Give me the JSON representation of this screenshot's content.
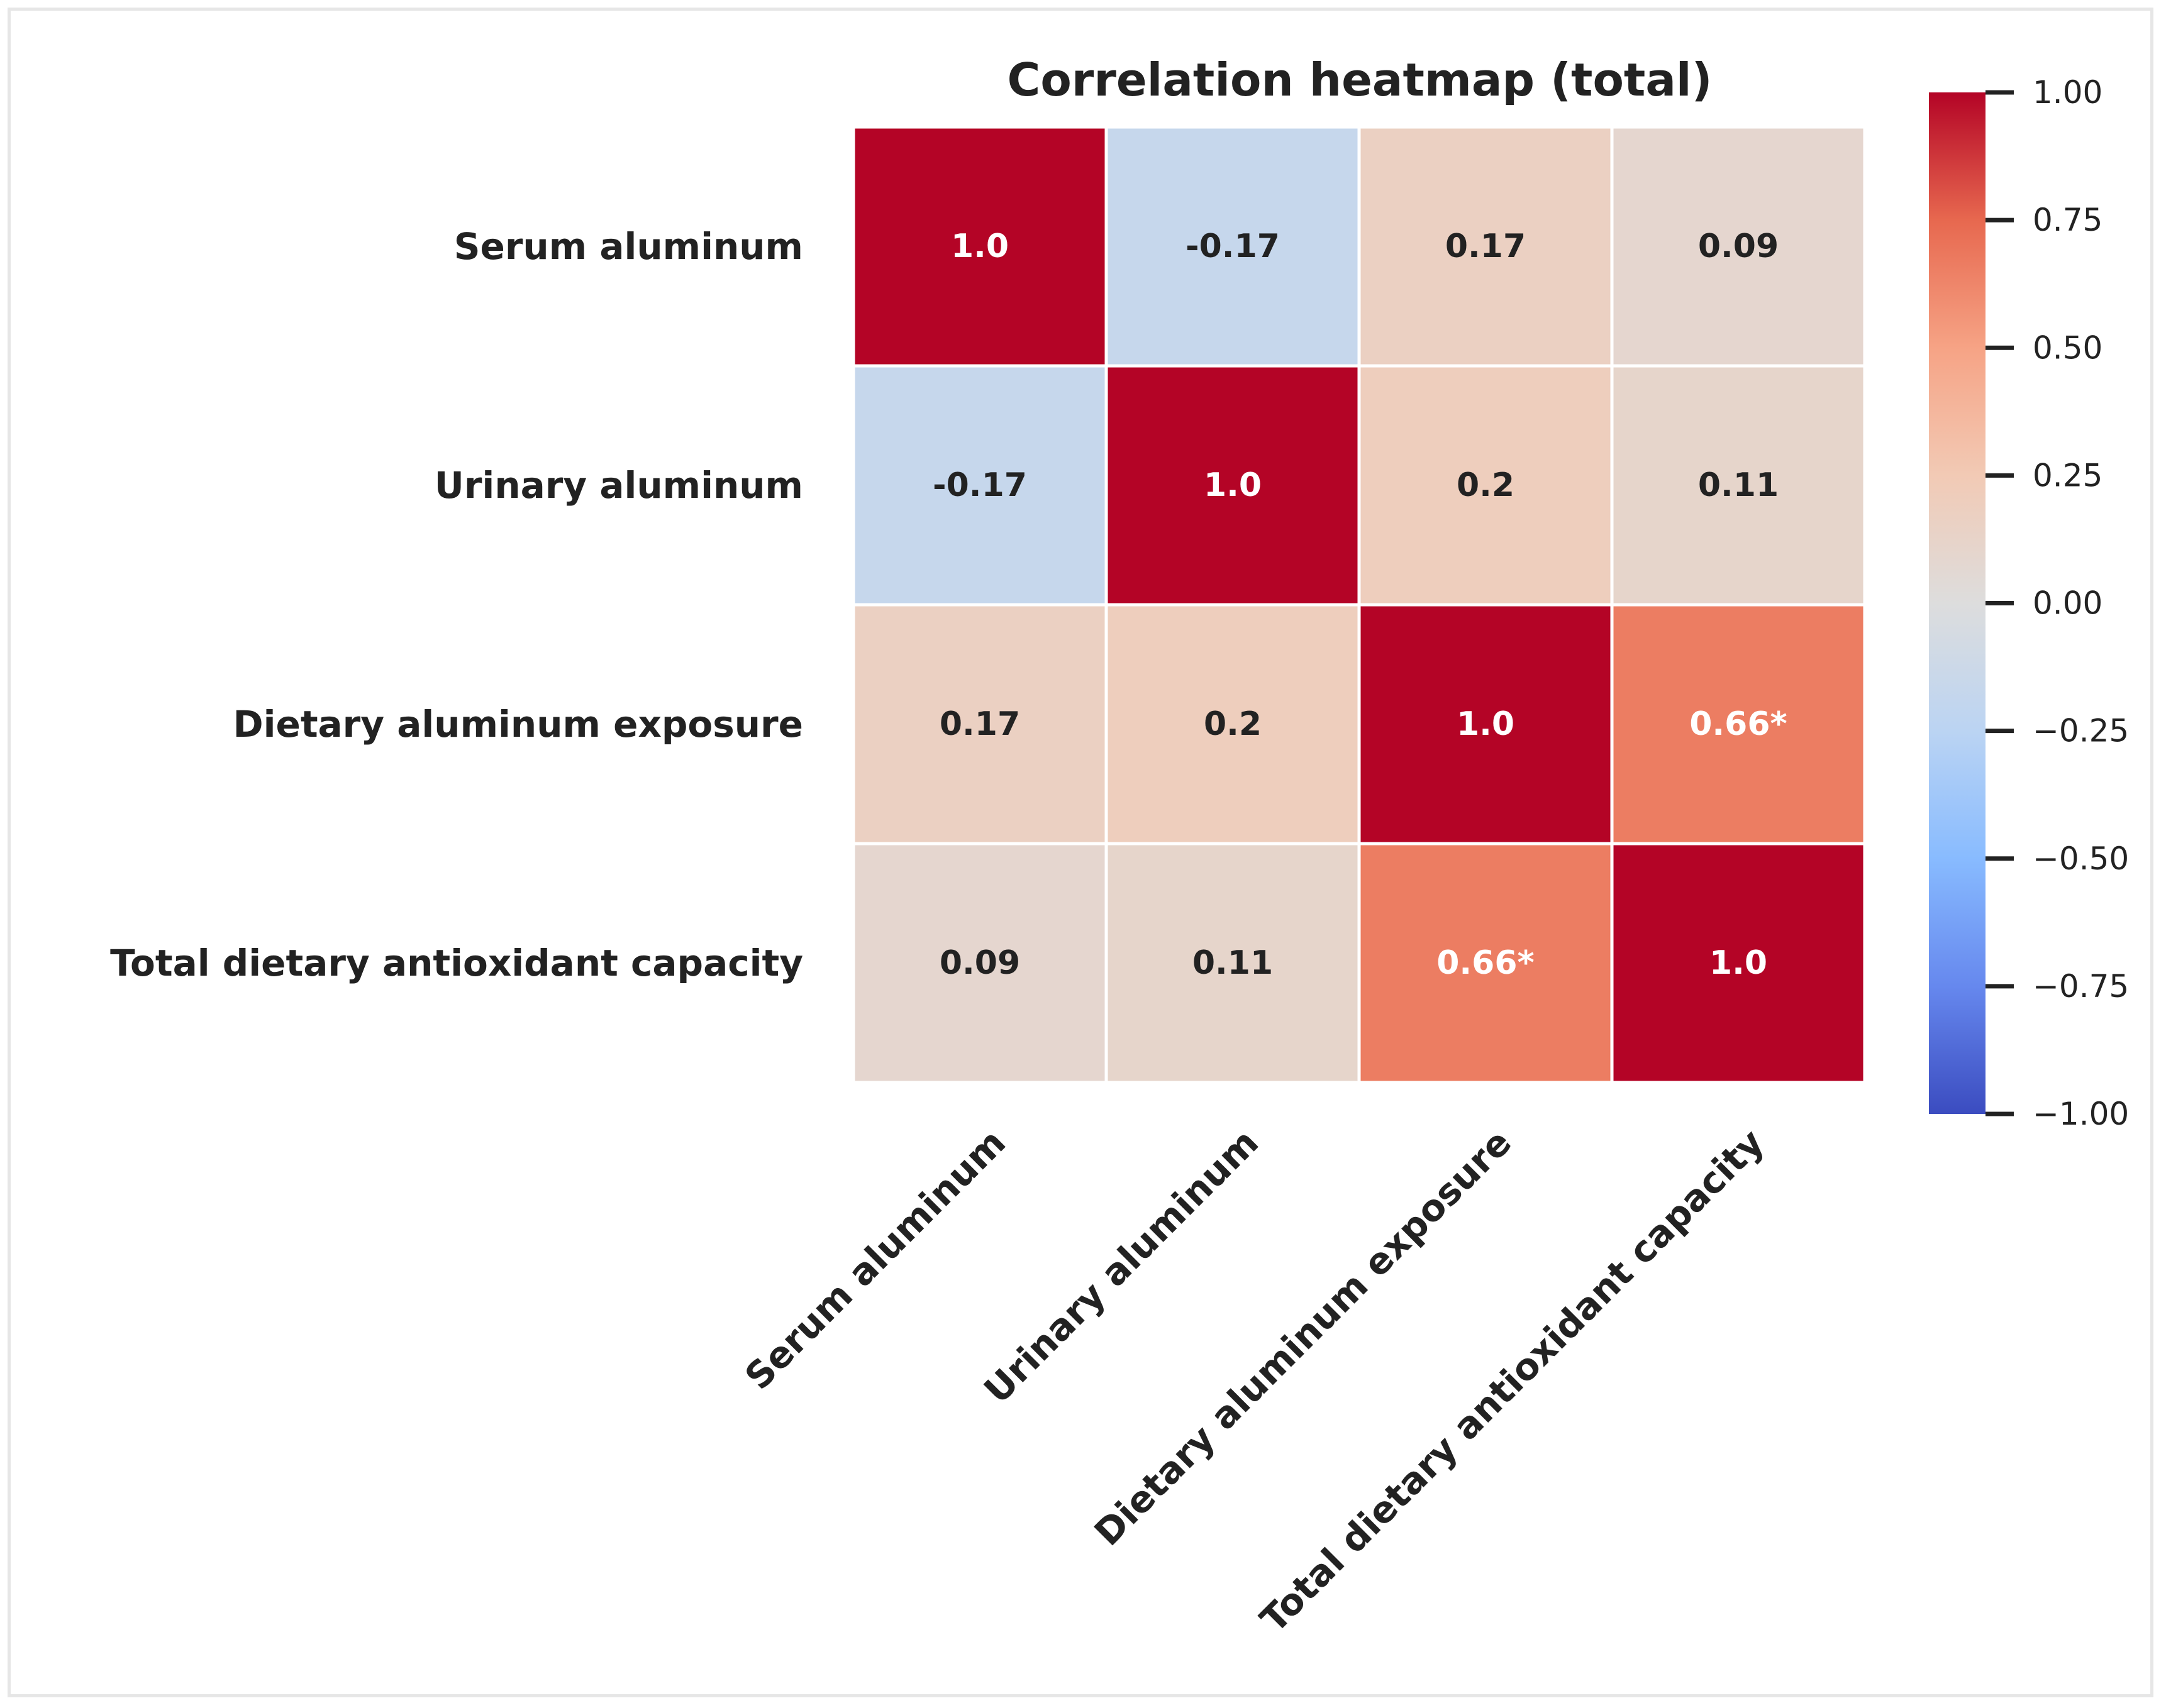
{
  "chart_data": {
    "type": "heatmap",
    "title": "Correlation heatmap (total)",
    "variables": [
      "Serum aluminum",
      "Urinary aluminum",
      "Dietary aluminum exposure",
      "Total dietary antioxidant capacity"
    ],
    "matrix": [
      [
        1.0,
        -0.17,
        0.17,
        0.09
      ],
      [
        -0.17,
        1.0,
        0.2,
        0.11
      ],
      [
        0.17,
        0.2,
        1.0,
        0.66
      ],
      [
        0.09,
        0.11,
        0.66,
        1.0
      ]
    ],
    "cell_labels": [
      [
        "1.0",
        "-0.17",
        "0.17",
        "0.09"
      ],
      [
        "-0.17",
        "1.0",
        "0.2",
        "0.11"
      ],
      [
        "0.17",
        "0.2",
        "1.0",
        "0.66*"
      ],
      [
        "0.09",
        "0.11",
        "0.66*",
        "1.0"
      ]
    ],
    "colormap": "coolwarm",
    "vmin": -1.0,
    "vmax": 1.0,
    "colorbar_ticks": [
      "1.00",
      "0.75",
      "0.50",
      "0.25",
      "0.00",
      "−0.25",
      "−0.50",
      "−0.75",
      "−1.00"
    ],
    "colorbar_tick_values": [
      1.0,
      0.75,
      0.5,
      0.25,
      0.0,
      -0.25,
      -0.5,
      -0.75,
      -1.0
    ],
    "colorbar_position": "right",
    "gridlines": true
  },
  "colors": {
    "text_dark": "#222222",
    "text_light": "#ffffff",
    "cell_border": "#ffffff",
    "colormap_stops": [
      "#3b4cc0",
      "#6688ee",
      "#88bbff",
      "#bbd4f3",
      "#dddddd",
      "#f2cab5",
      "#f6a385",
      "#e7684f",
      "#b40426"
    ]
  }
}
